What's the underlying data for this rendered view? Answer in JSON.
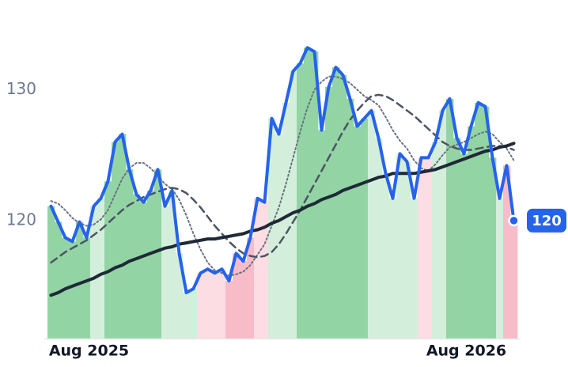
{
  "chart_data": {
    "type": "line",
    "categories": [
      null,
      null,
      null,
      null,
      null,
      null,
      "Aug 2025",
      null,
      null,
      null,
      null,
      null,
      null,
      null,
      null,
      null,
      null,
      null,
      null,
      null,
      null,
      null,
      null,
      null,
      null,
      null,
      null,
      null,
      null,
      null,
      null,
      null,
      null,
      null,
      null,
      null,
      null,
      null,
      null,
      null,
      null,
      null,
      null,
      null,
      null,
      null,
      null,
      null,
      null,
      null,
      null,
      null,
      null,
      null,
      null,
      null,
      null,
      null,
      null,
      "Aug 2026",
      null,
      null,
      null,
      null,
      null,
      null
    ],
    "series": [
      {
        "color": "#2563eb",
        "dash": "solid",
        "width": 4,
        "end_label": true,
        "values": [
          121.1,
          119.9,
          118.7,
          118.4,
          119.9,
          118.7,
          121.1,
          121.7,
          123,
          126,
          126.6,
          123.9,
          122,
          121.4,
          122.3,
          123.9,
          121.1,
          122.3,
          117.5,
          114.5,
          114.8,
          116,
          116.3,
          116,
          116.3,
          115.4,
          117.5,
          116.9,
          118.7,
          121.7,
          121.4,
          127.8,
          126.6,
          129,
          131.4,
          132,
          133.2,
          132.9,
          126.9,
          130.2,
          131.7,
          131.1,
          129.3,
          127.2,
          127.8,
          128.4,
          126.3,
          123.6,
          121.7,
          125.1,
          124.5,
          121.7,
          124.8,
          124.8,
          126,
          128.4,
          129.3,
          126.3,
          125.1,
          127.2,
          129,
          128.7,
          124.8,
          121.7,
          124.2,
          120
        ]
      },
      {
        "color": "#1f2937",
        "dash": "solid",
        "width": 4,
        "values": [
          114.3,
          114.5,
          114.8,
          115.0,
          115.2,
          115.4,
          115.6,
          115.9,
          116.1,
          116.4,
          116.6,
          116.9,
          117.1,
          117.3,
          117.5,
          117.7,
          117.9,
          118.0,
          118.2,
          118.3,
          118.4,
          118.5,
          118.6,
          118.6,
          118.7,
          118.8,
          118.9,
          119.0,
          119.2,
          119.3,
          119.5,
          119.8,
          120.0,
          120.3,
          120.6,
          120.8,
          121.1,
          121.3,
          121.6,
          121.8,
          122.0,
          122.3,
          122.5,
          122.7,
          122.9,
          123.1,
          123.3,
          123.4,
          123.6,
          123.6,
          123.6,
          123.6,
          123.7,
          123.8,
          123.9,
          124.1,
          124.3,
          124.5,
          124.7,
          124.9,
          125.1,
          125.3,
          125.4,
          125.6,
          125.7,
          125.9
        ]
      },
      {
        "color": "#4b5563",
        "dash": "dashed",
        "width": 2.5,
        "values": [
          116.8,
          117.2,
          117.6,
          117.9,
          118.2,
          118.5,
          118.9,
          119.3,
          119.8,
          120.3,
          120.8,
          121.2,
          121.5,
          121.8,
          122.0,
          122.2,
          122.4,
          122.5,
          122.4,
          122.1,
          121.6,
          121.0,
          120.3,
          119.6,
          119.0,
          118.4,
          117.9,
          117.5,
          117.3,
          117.2,
          117.3,
          117.6,
          118.2,
          119.0,
          119.9,
          120.8,
          121.8,
          122.8,
          123.8,
          124.8,
          125.8,
          126.8,
          127.7,
          128.4,
          129.0,
          129.5,
          129.6,
          129.5,
          129.2,
          128.8,
          128.4,
          128.0,
          127.5,
          127.0,
          126.5,
          126.0,
          125.7,
          125.5,
          125.4,
          125.4,
          125.5,
          125.6,
          125.7,
          125.7,
          125.6,
          125.4
        ]
      },
      {
        "color": "#6b7280",
        "dash": "dotted",
        "width": 2,
        "values": [
          121.5,
          121.3,
          120.8,
          120.2,
          119.8,
          119.6,
          119.7,
          120.1,
          120.8,
          122.0,
          123.2,
          124.0,
          124.4,
          124.4,
          124.0,
          123.4,
          122.8,
          122.4,
          121.6,
          120.4,
          119.0,
          117.8,
          116.8,
          116.2,
          116.0,
          115.8,
          115.9,
          116.1,
          116.6,
          117.4,
          118.2,
          119.6,
          121.0,
          122.8,
          124.8,
          126.8,
          128.6,
          130.0,
          130.6,
          131.0,
          131.0,
          130.8,
          130.5,
          130.0,
          129.5,
          129.2,
          128.8,
          127.9,
          126.9,
          126.1,
          125.5,
          124.6,
          124.0,
          123.8,
          124.3,
          125.0,
          125.6,
          125.8,
          126.0,
          126.3,
          126.6,
          126.8,
          126.6,
          126.0,
          125.5,
          124.6
        ]
      }
    ],
    "area_colors": [
      "#93d4a4",
      "#93d4a4",
      "#93d4a4",
      "#93d4a4",
      "#93d4a4",
      "#93d4a4",
      "#d3efdc",
      "#d3efdc",
      "#93d4a4",
      "#93d4a4",
      "#93d4a4",
      "#93d4a4",
      "#93d4a4",
      "#93d4a4",
      "#93d4a4",
      "#93d4a4",
      "#d3efdc",
      "#d3efdc",
      "#d3efdc",
      "#d3efdc",
      "#d3efdc",
      "#fcdde3",
      "#fcdde3",
      "#fcdde3",
      "#fcdde3",
      "#f7bcc8",
      "#f7bcc8",
      "#f7bcc8",
      "#f7bcc8",
      "#fcdde3",
      "#fcdde3",
      "#d3efdc",
      "#d3efdc",
      "#d3efdc",
      "#d3efdc",
      "#93d4a4",
      "#93d4a4",
      "#93d4a4",
      "#93d4a4",
      "#93d4a4",
      "#93d4a4",
      "#93d4a4",
      "#93d4a4",
      "#93d4a4",
      "#93d4a4",
      "#d3efdc",
      "#d3efdc",
      "#d3efdc",
      "#d3efdc",
      "#d3efdc",
      "#d3efdc",
      "#d3efdc",
      "#fcdde3",
      "#fcdde3",
      "#d3efdc",
      "#d3efdc",
      "#93d4a4",
      "#93d4a4",
      "#93d4a4",
      "#93d4a4",
      "#93d4a4",
      "#93d4a4",
      "#93d4a4",
      "#d3efdc",
      "#f7bcc8",
      "#f7bcc8"
    ],
    "ylim": [
      111,
      134
    ],
    "yticks": [
      120,
      130
    ],
    "grid": false
  }
}
